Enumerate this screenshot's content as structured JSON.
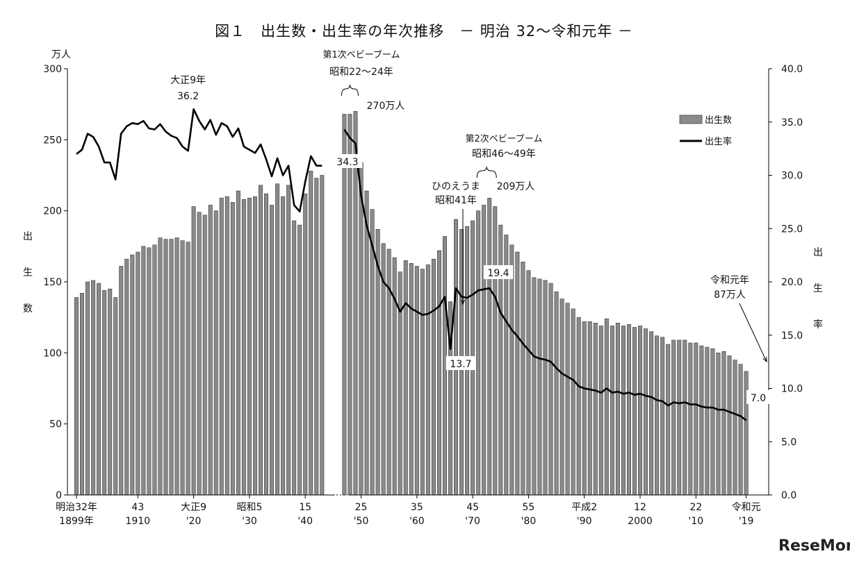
{
  "chart_data": {
    "type": "bar",
    "title": "図１　出生数・出生率の年次推移　－ 明治 32～令和元年 －",
    "y_left": {
      "unit": "万人",
      "label": "出生数",
      "range": [
        0,
        300
      ],
      "ticks": [
        "0",
        "50",
        "100",
        "150",
        "200",
        "250",
        "300"
      ]
    },
    "y_right": {
      "label": "出生率",
      "range": [
        0.0,
        40.0
      ],
      "ticks": [
        "0.0",
        "5.0",
        "10.0",
        "15.0",
        "20.0",
        "25.0",
        "30.0",
        "35.0",
        "40.0"
      ]
    },
    "x_tick_labels": [
      {
        "year": 1899,
        "l1": "明治32年",
        "l2": "1899年"
      },
      {
        "year": 1910,
        "l1": "43",
        "l2": "1910"
      },
      {
        "year": 1920,
        "l1": "大正9",
        "l2": "'20"
      },
      {
        "year": 1930,
        "l1": "昭和5",
        "l2": "'30"
      },
      {
        "year": 1940,
        "l1": "15",
        "l2": "'40"
      },
      {
        "year": 1950,
        "l1": "25",
        "l2": "'50"
      },
      {
        "year": 1960,
        "l1": "35",
        "l2": "'60"
      },
      {
        "year": 1970,
        "l1": "45",
        "l2": "'70"
      },
      {
        "year": 1980,
        "l1": "55",
        "l2": "'80"
      },
      {
        "year": 1990,
        "l1": "平成2",
        "l2": "'90"
      },
      {
        "year": 2000,
        "l1": "12",
        "l2": "2000"
      },
      {
        "year": 2010,
        "l1": "22",
        "l2": "'10"
      },
      {
        "year": 2019,
        "l1": "令和元",
        "l2": "'19"
      }
    ],
    "legend": {
      "position": "top-right",
      "bar": "出生数",
      "line": "出生率"
    },
    "gap_years": [
      1944,
      1945,
      1946
    ],
    "births": [
      [
        1899,
        139
      ],
      [
        1900,
        142
      ],
      [
        1901,
        150
      ],
      [
        1902,
        151
      ],
      [
        1903,
        149
      ],
      [
        1904,
        144
      ],
      [
        1905,
        145
      ],
      [
        1906,
        139
      ],
      [
        1907,
        161
      ],
      [
        1908,
        166
      ],
      [
        1909,
        169
      ],
      [
        1910,
        171
      ],
      [
        1911,
        175
      ],
      [
        1912,
        174
      ],
      [
        1913,
        176
      ],
      [
        1914,
        181
      ],
      [
        1915,
        180
      ],
      [
        1916,
        180
      ],
      [
        1917,
        181
      ],
      [
        1918,
        179
      ],
      [
        1919,
        178
      ],
      [
        1920,
        203
      ],
      [
        1921,
        199
      ],
      [
        1922,
        197
      ],
      [
        1923,
        204
      ],
      [
        1924,
        200
      ],
      [
        1925,
        209
      ],
      [
        1926,
        210
      ],
      [
        1927,
        206
      ],
      [
        1928,
        214
      ],
      [
        1929,
        208
      ],
      [
        1930,
        209
      ],
      [
        1931,
        210
      ],
      [
        1932,
        218
      ],
      [
        1933,
        212
      ],
      [
        1934,
        204
      ],
      [
        1935,
        219
      ],
      [
        1936,
        210
      ],
      [
        1937,
        218
      ],
      [
        1938,
        193
      ],
      [
        1939,
        190
      ],
      [
        1940,
        212
      ],
      [
        1941,
        228
      ],
      [
        1942,
        223
      ],
      [
        1943,
        225
      ],
      [
        1947,
        268
      ],
      [
        1948,
        268
      ],
      [
        1949,
        270
      ],
      [
        1950,
        234
      ],
      [
        1951,
        214
      ],
      [
        1952,
        201
      ],
      [
        1953,
        187
      ],
      [
        1954,
        177
      ],
      [
        1955,
        173
      ],
      [
        1956,
        167
      ],
      [
        1957,
        157
      ],
      [
        1958,
        165
      ],
      [
        1959,
        163
      ],
      [
        1960,
        161
      ],
      [
        1961,
        159
      ],
      [
        1962,
        162
      ],
      [
        1963,
        166
      ],
      [
        1964,
        172
      ],
      [
        1965,
        182
      ],
      [
        1966,
        136
      ],
      [
        1967,
        194
      ],
      [
        1968,
        187
      ],
      [
        1969,
        189
      ],
      [
        1970,
        193
      ],
      [
        1971,
        200
      ],
      [
        1972,
        204
      ],
      [
        1973,
        209
      ],
      [
        1974,
        203
      ],
      [
        1975,
        190
      ],
      [
        1976,
        183
      ],
      [
        1977,
        176
      ],
      [
        1978,
        171
      ],
      [
        1979,
        164
      ],
      [
        1980,
        158
      ],
      [
        1981,
        153
      ],
      [
        1982,
        152
      ],
      [
        1983,
        151
      ],
      [
        1984,
        149
      ],
      [
        1985,
        143
      ],
      [
        1986,
        138
      ],
      [
        1987,
        135
      ],
      [
        1988,
        131
      ],
      [
        1989,
        125
      ],
      [
        1990,
        122
      ],
      [
        1991,
        122
      ],
      [
        1992,
        121
      ],
      [
        1993,
        119
      ],
      [
        1994,
        124
      ],
      [
        1995,
        119
      ],
      [
        1996,
        121
      ],
      [
        1997,
        119
      ],
      [
        1998,
        120
      ],
      [
        1999,
        118
      ],
      [
        2000,
        119
      ],
      [
        2001,
        117
      ],
      [
        2002,
        115
      ],
      [
        2003,
        112
      ],
      [
        2004,
        111
      ],
      [
        2005,
        106
      ],
      [
        2006,
        109
      ],
      [
        2007,
        109
      ],
      [
        2008,
        109
      ],
      [
        2009,
        107
      ],
      [
        2010,
        107
      ],
      [
        2011,
        105
      ],
      [
        2012,
        104
      ],
      [
        2013,
        103
      ],
      [
        2014,
        100
      ],
      [
        2015,
        101
      ],
      [
        2016,
        98
      ],
      [
        2017,
        95
      ],
      [
        2018,
        92
      ],
      [
        2019,
        87
      ]
    ],
    "birth_rate": [
      [
        1899,
        32.0
      ],
      [
        1900,
        32.4
      ],
      [
        1901,
        33.9
      ],
      [
        1902,
        33.6
      ],
      [
        1903,
        32.7
      ],
      [
        1904,
        31.2
      ],
      [
        1905,
        31.2
      ],
      [
        1906,
        29.6
      ],
      [
        1907,
        33.9
      ],
      [
        1908,
        34.6
      ],
      [
        1909,
        34.9
      ],
      [
        1910,
        34.8
      ],
      [
        1911,
        35.1
      ],
      [
        1912,
        34.4
      ],
      [
        1913,
        34.3
      ],
      [
        1914,
        34.8
      ],
      [
        1915,
        34.1
      ],
      [
        1916,
        33.7
      ],
      [
        1917,
        33.5
      ],
      [
        1918,
        32.7
      ],
      [
        1919,
        32.3
      ],
      [
        1920,
        36.2
      ],
      [
        1921,
        35.1
      ],
      [
        1922,
        34.3
      ],
      [
        1923,
        35.2
      ],
      [
        1924,
        33.8
      ],
      [
        1925,
        34.9
      ],
      [
        1926,
        34.6
      ],
      [
        1927,
        33.6
      ],
      [
        1928,
        34.4
      ],
      [
        1929,
        32.7
      ],
      [
        1930,
        32.4
      ],
      [
        1931,
        32.1
      ],
      [
        1932,
        32.9
      ],
      [
        1933,
        31.5
      ],
      [
        1934,
        29.9
      ],
      [
        1935,
        31.6
      ],
      [
        1936,
        30.0
      ],
      [
        1937,
        30.9
      ],
      [
        1938,
        27.2
      ],
      [
        1939,
        26.6
      ],
      [
        1940,
        29.4
      ],
      [
        1941,
        31.8
      ],
      [
        1942,
        30.9
      ],
      [
        1943,
        30.9
      ],
      [
        1947,
        34.3
      ],
      [
        1948,
        33.5
      ],
      [
        1949,
        33.0
      ],
      [
        1950,
        28.1
      ],
      [
        1951,
        25.3
      ],
      [
        1952,
        23.4
      ],
      [
        1953,
        21.5
      ],
      [
        1954,
        20.0
      ],
      [
        1955,
        19.4
      ],
      [
        1956,
        18.4
      ],
      [
        1957,
        17.2
      ],
      [
        1958,
        18.0
      ],
      [
        1959,
        17.5
      ],
      [
        1960,
        17.2
      ],
      [
        1961,
        16.9
      ],
      [
        1962,
        17.0
      ],
      [
        1963,
        17.3
      ],
      [
        1964,
        17.7
      ],
      [
        1965,
        18.6
      ],
      [
        1966,
        13.7
      ],
      [
        1967,
        19.4
      ],
      [
        1968,
        18.6
      ],
      [
        1969,
        18.5
      ],
      [
        1970,
        18.8
      ],
      [
        1971,
        19.2
      ],
      [
        1972,
        19.3
      ],
      [
        1973,
        19.4
      ],
      [
        1974,
        18.6
      ],
      [
        1975,
        17.1
      ],
      [
        1976,
        16.3
      ],
      [
        1977,
        15.5
      ],
      [
        1978,
        14.9
      ],
      [
        1979,
        14.2
      ],
      [
        1980,
        13.6
      ],
      [
        1981,
        13.0
      ],
      [
        1982,
        12.8
      ],
      [
        1983,
        12.7
      ],
      [
        1984,
        12.5
      ],
      [
        1985,
        11.9
      ],
      [
        1986,
        11.4
      ],
      [
        1987,
        11.1
      ],
      [
        1988,
        10.8
      ],
      [
        1989,
        10.2
      ],
      [
        1990,
        10.0
      ],
      [
        1991,
        9.9
      ],
      [
        1992,
        9.8
      ],
      [
        1993,
        9.6
      ],
      [
        1994,
        10.0
      ],
      [
        1995,
        9.6
      ],
      [
        1996,
        9.7
      ],
      [
        1997,
        9.5
      ],
      [
        1998,
        9.6
      ],
      [
        1999,
        9.4
      ],
      [
        2000,
        9.5
      ],
      [
        2001,
        9.3
      ],
      [
        2002,
        9.2
      ],
      [
        2003,
        8.9
      ],
      [
        2004,
        8.8
      ],
      [
        2005,
        8.4
      ],
      [
        2006,
        8.7
      ],
      [
        2007,
        8.6
      ],
      [
        2008,
        8.7
      ],
      [
        2009,
        8.5
      ],
      [
        2010,
        8.5
      ],
      [
        2011,
        8.3
      ],
      [
        2012,
        8.2
      ],
      [
        2013,
        8.2
      ],
      [
        2014,
        8.0
      ],
      [
        2015,
        8.0
      ],
      [
        2016,
        7.8
      ],
      [
        2017,
        7.6
      ],
      [
        2018,
        7.4
      ],
      [
        2019,
        7.0
      ]
    ],
    "annotations": [
      {
        "id": "taisho9",
        "l1": "大正9年",
        "l2": "36.2",
        "year": 1920
      },
      {
        "id": "boom1",
        "l1": "第1次ベビーブーム",
        "l2": "昭和22～24年",
        "year": 1948
      },
      {
        "id": "b270",
        "l1": "270万人",
        "year": 1949
      },
      {
        "id": "r343",
        "l1": "34.3",
        "year": 1947
      },
      {
        "id": "boom2",
        "l1": "第2次ベビーブーム",
        "l2": "昭和46～49年",
        "year": 1972
      },
      {
        "id": "b209",
        "l1": "209万人",
        "year": 1973
      },
      {
        "id": "r194",
        "l1": "19.4",
        "year": 1973
      },
      {
        "id": "hinoe",
        "l1": "ひのえうま",
        "l2": "昭和41年",
        "year": 1966
      },
      {
        "id": "r137",
        "l1": "13.7",
        "year": 1966
      },
      {
        "id": "reiwa",
        "l1": "令和元年",
        "l2": "87万人",
        "year": 2019
      },
      {
        "id": "r70",
        "l1": "7.0",
        "year": 2019
      }
    ]
  },
  "watermark": "ReseMom"
}
